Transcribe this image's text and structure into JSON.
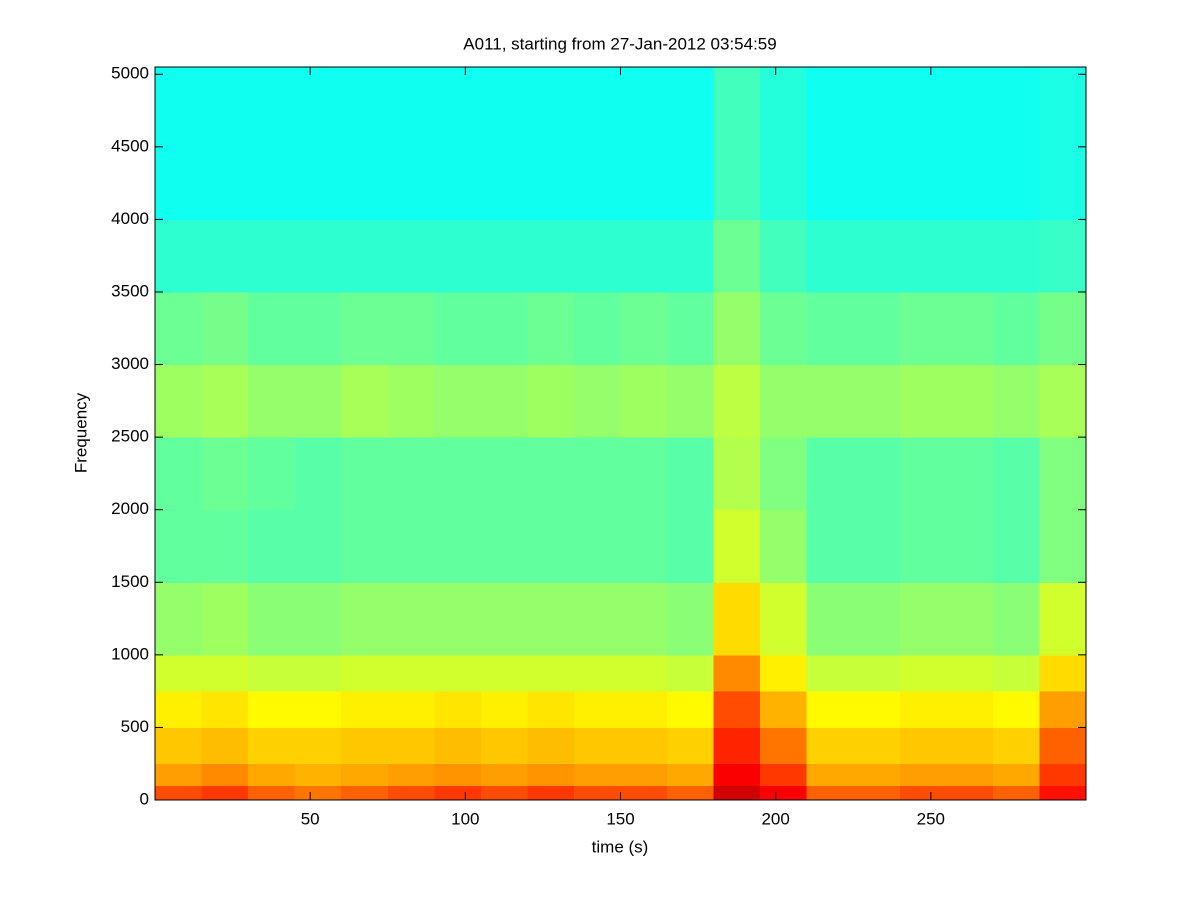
{
  "chart_data": {
    "type": "spectrogram",
    "title": "A011, starting from 27-Jan-2012 03:54:59",
    "x_label": "time (s)",
    "y_label": "Frequency",
    "xlim": [
      0,
      300
    ],
    "ylim": [
      0,
      5050
    ],
    "xticks": [
      50,
      100,
      150,
      200,
      250
    ],
    "yticks": [
      0,
      500,
      1000,
      1500,
      2000,
      2500,
      3000,
      3500,
      4000,
      4500,
      5000
    ],
    "colormap": "jet",
    "clim": [
      0,
      1
    ],
    "xbins": [
      0,
      15,
      30,
      45,
      60,
      75,
      90,
      105,
      120,
      135,
      150,
      165,
      180,
      195,
      210,
      225,
      240,
      255,
      270,
      285,
      300
    ],
    "ybins": [
      0,
      100,
      250,
      500,
      750,
      1000,
      1500,
      2000,
      2500,
      3000,
      3500,
      4000,
      5050
    ],
    "z": [
      [
        0.8,
        0.82,
        0.78,
        0.76,
        0.78,
        0.8,
        0.82,
        0.8,
        0.82,
        0.8,
        0.8,
        0.78,
        0.92,
        0.88,
        0.78,
        0.78,
        0.8,
        0.8,
        0.78,
        0.86
      ],
      [
        0.72,
        0.74,
        0.71,
        0.7,
        0.71,
        0.72,
        0.73,
        0.72,
        0.73,
        0.72,
        0.72,
        0.71,
        0.88,
        0.82,
        0.71,
        0.71,
        0.72,
        0.72,
        0.71,
        0.82
      ],
      [
        0.68,
        0.69,
        0.67,
        0.67,
        0.68,
        0.68,
        0.69,
        0.68,
        0.69,
        0.68,
        0.68,
        0.67,
        0.84,
        0.76,
        0.67,
        0.67,
        0.68,
        0.68,
        0.67,
        0.78
      ],
      [
        0.64,
        0.65,
        0.63,
        0.63,
        0.64,
        0.64,
        0.65,
        0.64,
        0.65,
        0.64,
        0.64,
        0.63,
        0.8,
        0.7,
        0.63,
        0.63,
        0.64,
        0.64,
        0.63,
        0.72
      ],
      [
        0.58,
        0.58,
        0.57,
        0.57,
        0.58,
        0.58,
        0.58,
        0.58,
        0.58,
        0.58,
        0.58,
        0.57,
        0.74,
        0.64,
        0.57,
        0.57,
        0.58,
        0.58,
        0.57,
        0.66
      ],
      [
        0.52,
        0.53,
        0.51,
        0.51,
        0.52,
        0.52,
        0.52,
        0.52,
        0.52,
        0.52,
        0.52,
        0.51,
        0.66,
        0.58,
        0.51,
        0.51,
        0.52,
        0.52,
        0.51,
        0.58
      ],
      [
        0.47,
        0.47,
        0.46,
        0.46,
        0.47,
        0.47,
        0.47,
        0.47,
        0.47,
        0.47,
        0.47,
        0.46,
        0.58,
        0.52,
        0.46,
        0.46,
        0.47,
        0.47,
        0.46,
        0.5
      ],
      [
        0.47,
        0.48,
        0.47,
        0.46,
        0.47,
        0.47,
        0.47,
        0.47,
        0.47,
        0.47,
        0.47,
        0.46,
        0.55,
        0.5,
        0.46,
        0.46,
        0.47,
        0.47,
        0.46,
        0.5
      ],
      [
        0.53,
        0.54,
        0.52,
        0.52,
        0.54,
        0.53,
        0.52,
        0.52,
        0.53,
        0.52,
        0.53,
        0.52,
        0.56,
        0.52,
        0.52,
        0.52,
        0.53,
        0.53,
        0.52,
        0.54
      ],
      [
        0.48,
        0.49,
        0.47,
        0.47,
        0.48,
        0.48,
        0.47,
        0.47,
        0.48,
        0.47,
        0.48,
        0.47,
        0.52,
        0.48,
        0.47,
        0.47,
        0.48,
        0.48,
        0.47,
        0.49
      ],
      [
        0.42,
        0.42,
        0.42,
        0.42,
        0.42,
        0.42,
        0.42,
        0.42,
        0.42,
        0.42,
        0.42,
        0.42,
        0.48,
        0.44,
        0.42,
        0.42,
        0.42,
        0.42,
        0.42,
        0.43
      ],
      [
        0.39,
        0.39,
        0.39,
        0.39,
        0.39,
        0.39,
        0.39,
        0.39,
        0.39,
        0.39,
        0.39,
        0.39,
        0.44,
        0.41,
        0.39,
        0.39,
        0.39,
        0.39,
        0.39,
        0.4
      ]
    ]
  }
}
